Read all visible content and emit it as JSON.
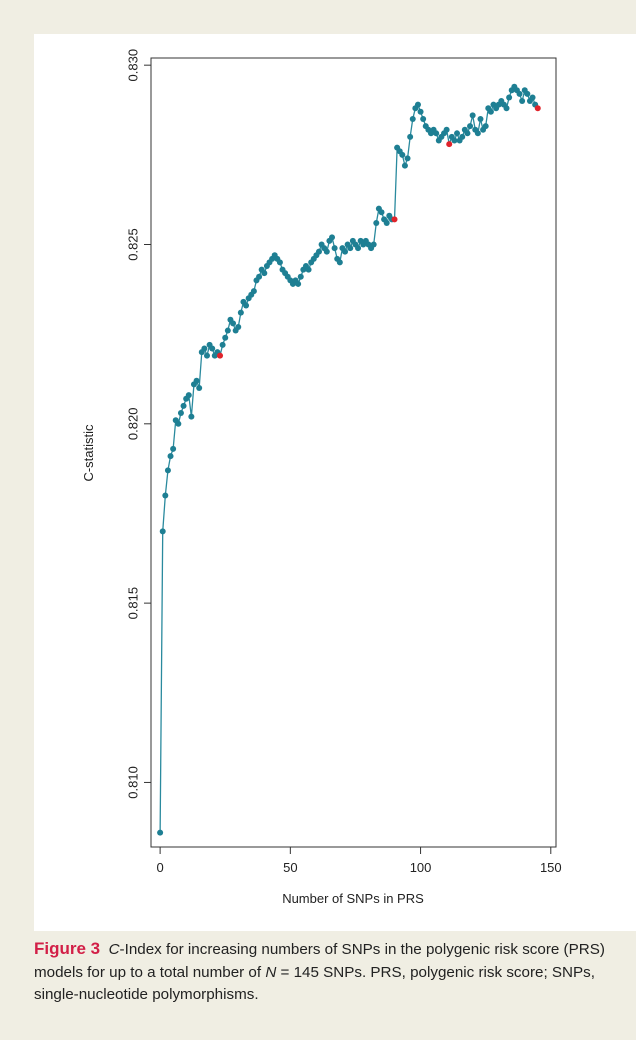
{
  "chart_data": {
    "type": "line",
    "xlabel": "Number of SNPs in PRS",
    "ylabel": "C-statistic",
    "xlim": [
      -3.5,
      152
    ],
    "ylim": [
      0.8082,
      0.8302
    ],
    "x_ticks": [
      0,
      50,
      100,
      150
    ],
    "y_ticks": [
      0.81,
      0.815,
      0.82,
      0.825,
      0.83
    ],
    "x_tick_labels": [
      "0",
      "50",
      "100",
      "150"
    ],
    "y_tick_labels": [
      "0.810",
      "0.815",
      "0.820",
      "0.825",
      "0.830"
    ],
    "grid": false,
    "legend": "none",
    "line_color": "#2a8a9e",
    "point_color": "#1e7f93",
    "highlight_color": "#e0232b",
    "highlight_x": [
      23,
      90,
      111,
      145
    ],
    "series": [
      {
        "x": [
          0,
          1,
          2,
          3,
          4,
          5,
          6,
          7,
          8,
          9,
          10,
          11,
          12,
          13,
          14,
          15,
          16,
          17,
          18,
          19,
          20,
          21,
          22,
          23,
          24,
          25,
          26,
          27,
          28,
          29,
          30,
          31,
          32,
          33,
          34,
          35,
          36,
          37,
          38,
          39,
          40,
          41,
          42,
          43,
          44,
          45,
          46,
          47,
          48,
          49,
          50,
          51,
          52,
          53,
          54,
          55,
          56,
          57,
          58,
          59,
          60,
          61,
          62,
          63,
          64,
          65,
          66,
          67,
          68,
          69,
          70,
          71,
          72,
          73,
          74,
          75,
          76,
          77,
          78,
          79,
          80,
          81,
          82,
          83,
          84,
          85,
          86,
          87,
          88,
          89,
          90,
          91,
          92,
          93,
          94,
          95,
          96,
          97,
          98,
          99,
          100,
          101,
          102,
          103,
          104,
          105,
          106,
          107,
          108,
          109,
          110,
          111,
          112,
          113,
          114,
          115,
          116,
          117,
          118,
          119,
          120,
          121,
          122,
          123,
          124,
          125,
          126,
          127,
          128,
          129,
          130,
          131,
          132,
          133,
          134,
          135,
          136,
          137,
          138,
          139,
          140,
          141,
          142,
          143,
          144,
          145
        ],
        "y": [
          0.8086,
          0.817,
          0.818,
          0.8187,
          0.8191,
          0.8193,
          0.8201,
          0.82,
          0.8203,
          0.8205,
          0.8207,
          0.8208,
          0.8202,
          0.8211,
          0.8212,
          0.821,
          0.822,
          0.8221,
          0.8219,
          0.8222,
          0.8221,
          0.8219,
          0.822,
          0.8219,
          0.8222,
          0.8224,
          0.8226,
          0.8229,
          0.8228,
          0.8226,
          0.8227,
          0.8231,
          0.8234,
          0.8233,
          0.8235,
          0.8236,
          0.8237,
          0.824,
          0.8241,
          0.8243,
          0.8242,
          0.8244,
          0.8245,
          0.8246,
          0.8247,
          0.8246,
          0.8245,
          0.8243,
          0.8242,
          0.8241,
          0.824,
          0.8239,
          0.824,
          0.8239,
          0.8241,
          0.8243,
          0.8244,
          0.8243,
          0.8245,
          0.8246,
          0.8247,
          0.8248,
          0.825,
          0.8249,
          0.8248,
          0.8251,
          0.8252,
          0.8249,
          0.8246,
          0.8245,
          0.8249,
          0.8248,
          0.825,
          0.8249,
          0.8251,
          0.825,
          0.8249,
          0.8251,
          0.825,
          0.8251,
          0.825,
          0.8249,
          0.825,
          0.8256,
          0.826,
          0.8259,
          0.8257,
          0.8256,
          0.8258,
          0.8257,
          0.8257,
          0.8277,
          0.8276,
          0.8275,
          0.8272,
          0.8274,
          0.828,
          0.8285,
          0.8288,
          0.8289,
          0.8287,
          0.8285,
          0.8283,
          0.8282,
          0.8281,
          0.8282,
          0.8281,
          0.8279,
          0.828,
          0.8281,
          0.8282,
          0.8278,
          0.828,
          0.8279,
          0.8281,
          0.8279,
          0.828,
          0.8282,
          0.8281,
          0.8283,
          0.8286,
          0.8282,
          0.8281,
          0.8285,
          0.8282,
          0.8283,
          0.8288,
          0.8287,
          0.8289,
          0.8288,
          0.8289,
          0.829,
          0.8289,
          0.8288,
          0.8291,
          0.8293,
          0.8294,
          0.8293,
          0.8292,
          0.829,
          0.8293,
          0.8292,
          0.829,
          0.8291,
          0.8289,
          0.8288
        ]
      }
    ]
  },
  "caption": {
    "label": "Figure 3",
    "text_italic": "C",
    "text_1": "-Index for increasing numbers of SNPs in the polygenic risk score (PRS) models for up to a total number of ",
    "n_italic": "N",
    "text_2": " = 145 SNPs. PRS, polygenic risk score; SNPs, single-nucleotide polymorphisms."
  }
}
